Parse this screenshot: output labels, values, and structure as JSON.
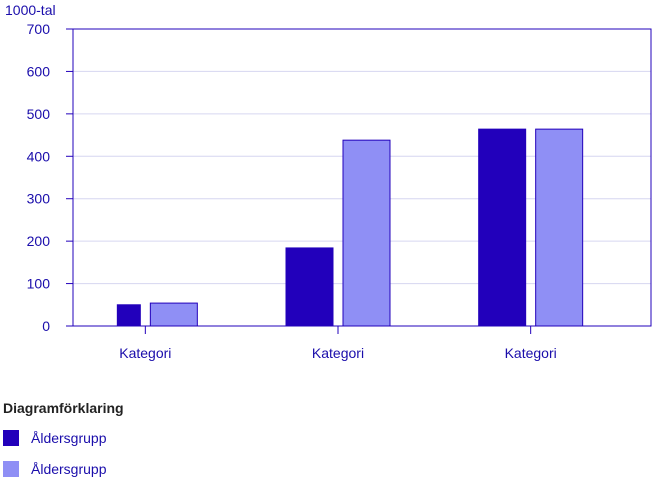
{
  "chart_data": {
    "type": "bar",
    "unit_label": "1000-tal",
    "categories": [
      "Kategori",
      "Kategori",
      "Kategori"
    ],
    "series": [
      {
        "name": "Åldersgrupp",
        "color": "#2200bb",
        "values": [
          50,
          184,
          464
        ]
      },
      {
        "name": "Åldersgrupp",
        "color": "#8f8ff5",
        "values": [
          54,
          438,
          464
        ]
      }
    ],
    "ylim": [
      0,
      700
    ],
    "yticks": [
      0,
      100,
      200,
      300,
      400,
      500,
      600,
      700
    ],
    "grid": true,
    "legend": {
      "title": "Diagramförklaring",
      "placement": "bottom-left"
    }
  }
}
